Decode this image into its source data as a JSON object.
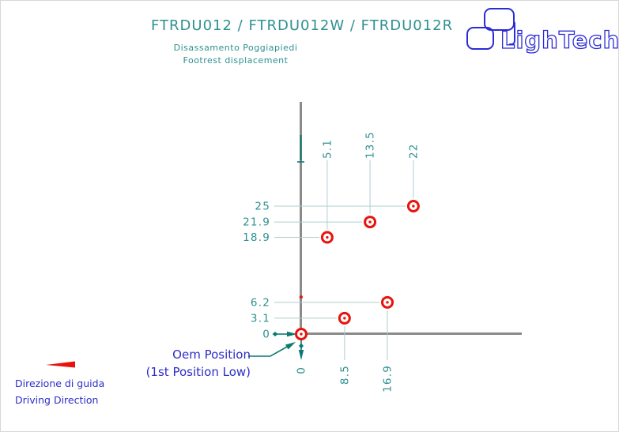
{
  "header": {
    "title": "FTRDU012 / FTRDU012W / FTRDU012R",
    "subtitle_it": "Disassamento Poggiapiedi",
    "subtitle_en": "Footrest displacement"
  },
  "logo": {
    "brand": "LighTech"
  },
  "annotations": {
    "oem_line1": "Oem Position",
    "oem_line2": "(1st Position Low)",
    "direction_it": "Direzione di guida",
    "direction_en": "Driving Direction"
  },
  "colors": {
    "teal": "#2f9090",
    "teal_dark": "#0a7a72",
    "leader": "#aecfcf",
    "axis_gray": "#8a8a8a",
    "red": "#e8130c",
    "blue": "#2d2dc9",
    "logo_blue": "#2b2bd8"
  },
  "chart_data": {
    "type": "scatter",
    "title": "FTRDU012 / FTRDU012W / FTRDU012R",
    "subtitle": "Disassamento Poggiapiedi / Footrest displacement",
    "marker": "circled-dot",
    "points": [
      {
        "x": 0,
        "y": 0,
        "label": "Oem Position (1st Position Low)"
      },
      {
        "x": 8.5,
        "y": 3.1
      },
      {
        "x": 16.9,
        "y": 6.2
      },
      {
        "x": 5.1,
        "y": 18.9
      },
      {
        "x": 13.5,
        "y": 21.9
      },
      {
        "x": 22,
        "y": 25
      }
    ],
    "x_tick_labels_top": [
      "5.1",
      "13.5",
      "22"
    ],
    "x_tick_labels_bottom": [
      "0",
      "8.5",
      "16.9"
    ],
    "y_tick_labels": [
      "25",
      "21.9",
      "18.9",
      "6.2",
      "3.1",
      "0"
    ],
    "xlabel": "",
    "ylabel": "",
    "xlim": [
      0,
      25
    ],
    "ylim": [
      0,
      28
    ],
    "grid": false,
    "legend": false
  }
}
